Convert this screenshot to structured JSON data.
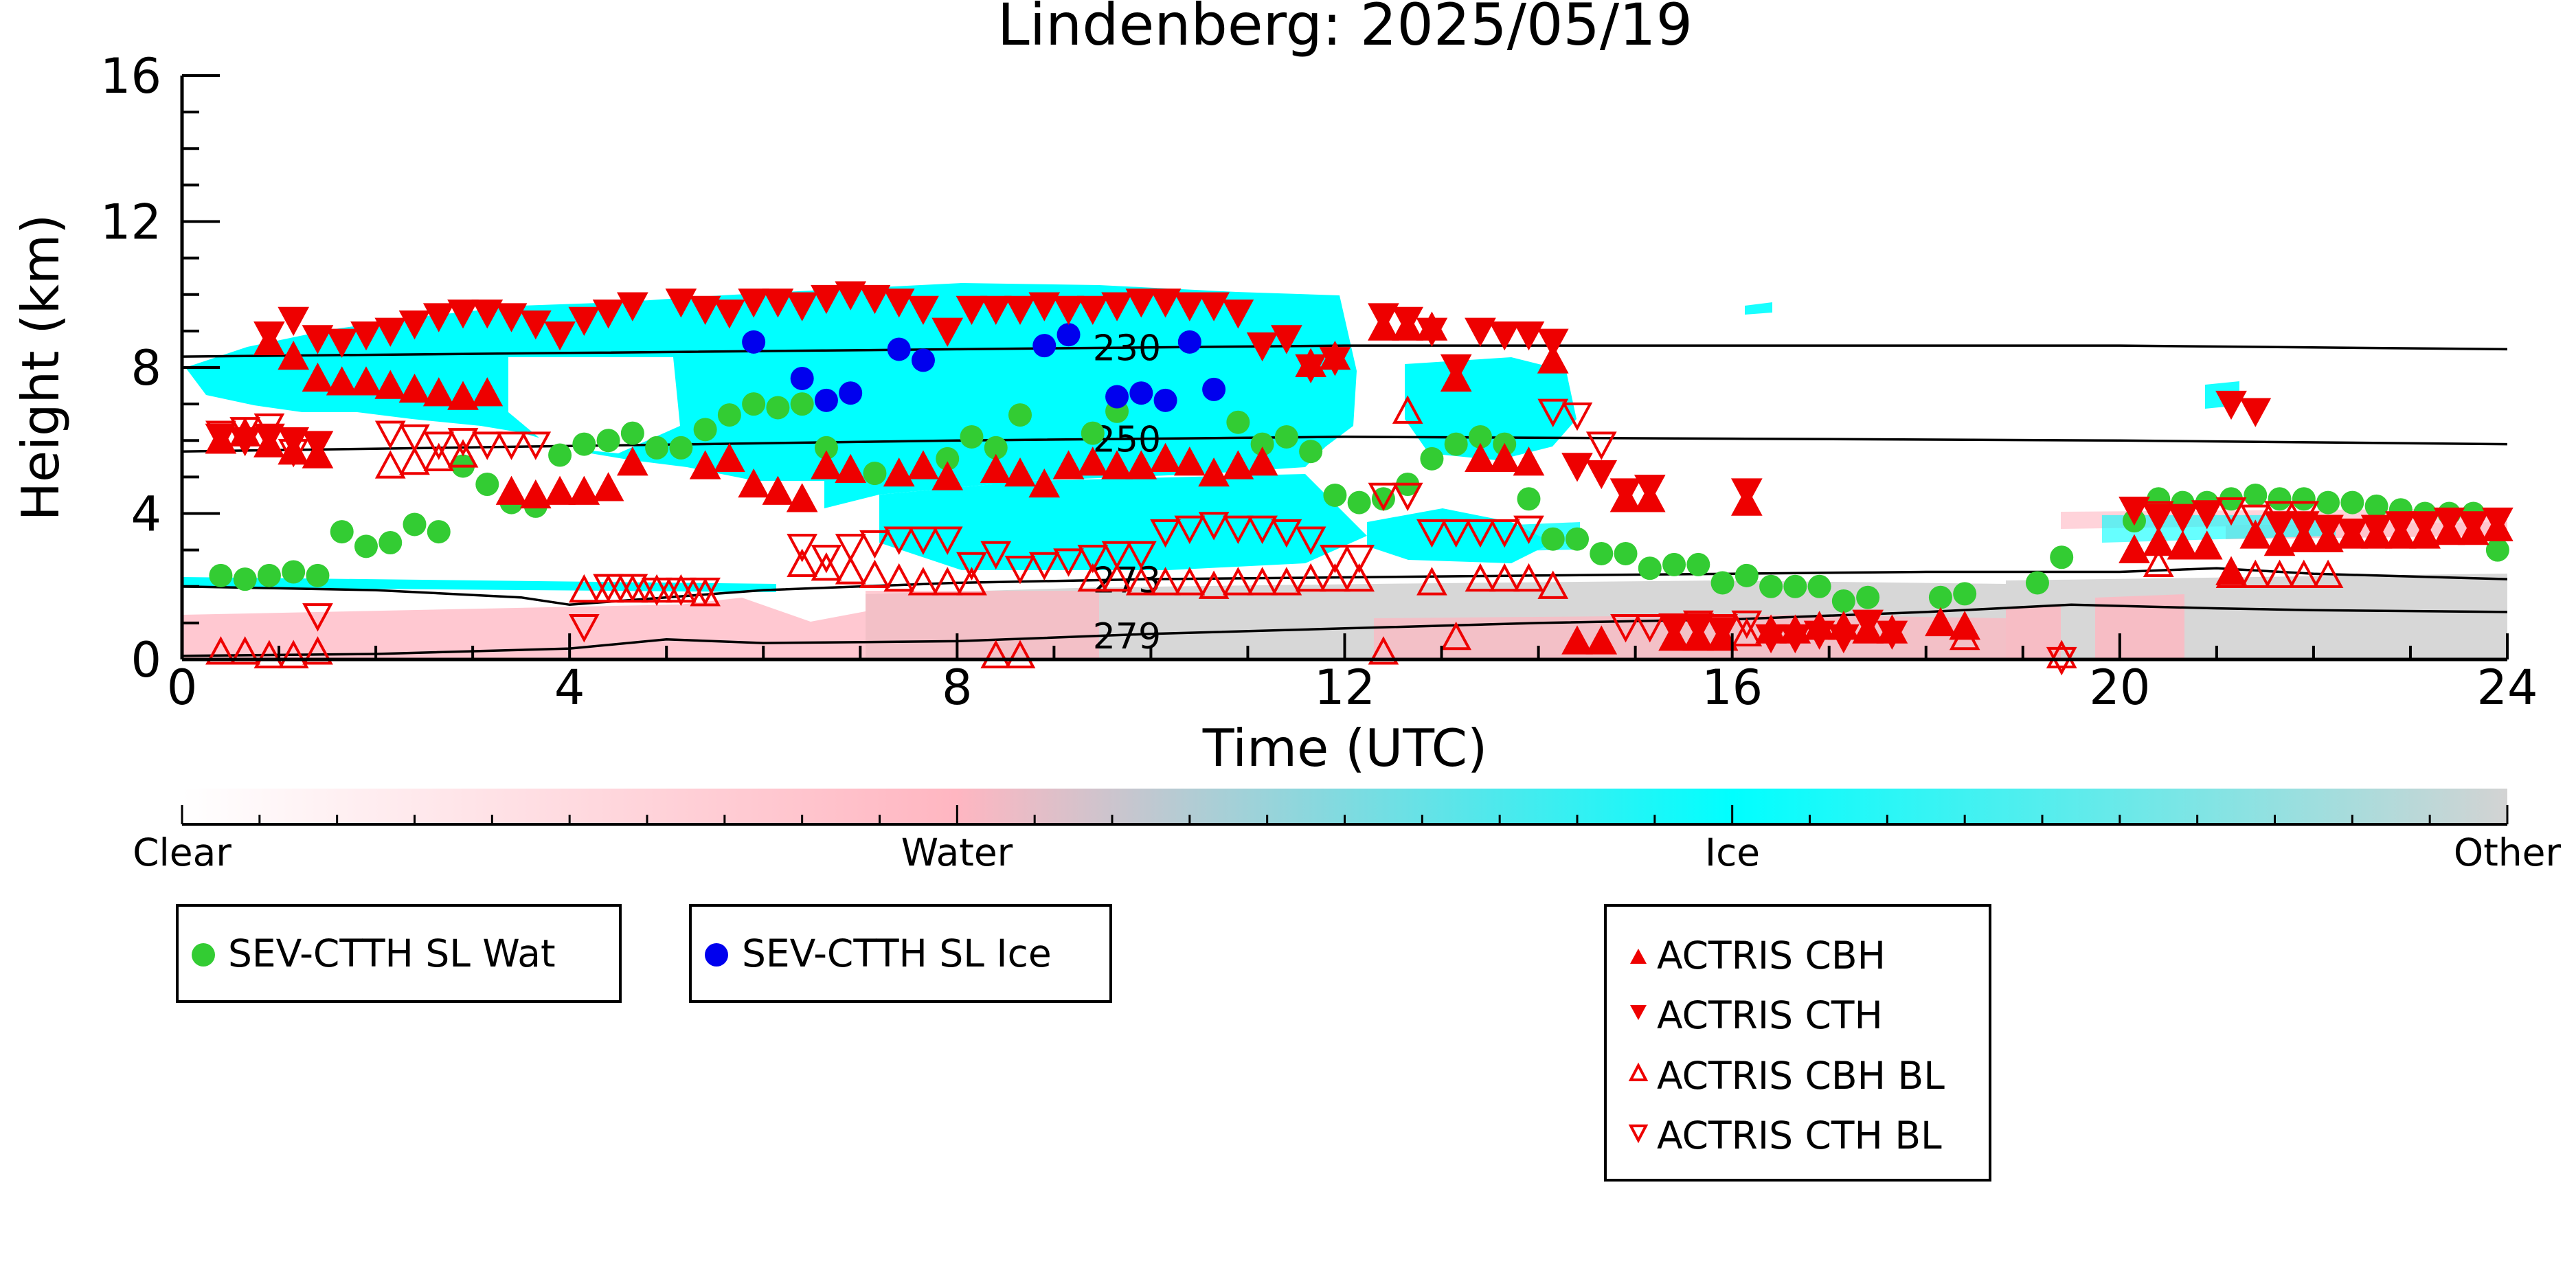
{
  "chart_data": {
    "type": "scatter",
    "title": "Lindenberg: 2025/05/19",
    "xlabel": "Time (UTC)",
    "ylabel": "Height (km)",
    "xlim": [
      0,
      24
    ],
    "ylim": [
      0,
      16
    ],
    "x_ticks": [
      "0",
      "4",
      "8",
      "12",
      "16",
      "20",
      "24"
    ],
    "y_ticks": [
      "0",
      "4",
      "8",
      "12",
      "16"
    ],
    "colorbar": {
      "labels": [
        "Clear",
        "Water",
        "Ice",
        "Other"
      ],
      "colors": [
        "#ffffff",
        "#ffb6c1",
        "#00ffff",
        "#d3d3d3"
      ]
    },
    "isotherms": [
      {
        "label": "230",
        "label_at_x": 9.4,
        "x": [
          0,
          4,
          8,
          12,
          16,
          20,
          24
        ],
        "y": [
          8.3,
          8.4,
          8.5,
          8.6,
          8.6,
          8.6,
          8.5
        ]
      },
      {
        "label": "250",
        "label_at_x": 9.4,
        "x": [
          0,
          4,
          8,
          12,
          16,
          20,
          24
        ],
        "y": [
          5.7,
          5.85,
          6.0,
          6.1,
          6.05,
          6.0,
          5.9
        ]
      },
      {
        "label": "273",
        "label_at_x": 9.4,
        "x": [
          0,
          1,
          2,
          3.5,
          4,
          6,
          8,
          10,
          12,
          14,
          16,
          18,
          20,
          21,
          22,
          24
        ],
        "y": [
          2.0,
          1.95,
          1.9,
          1.7,
          1.5,
          1.9,
          2.1,
          2.2,
          2.25,
          2.3,
          2.35,
          2.4,
          2.4,
          2.5,
          2.35,
          2.2
        ]
      },
      {
        "label": "279",
        "label_at_x": 9.4,
        "x": [
          0,
          2,
          4,
          5,
          6,
          8,
          10,
          12,
          14,
          16,
          18,
          19.5,
          21,
          22,
          24
        ],
        "y": [
          0.1,
          0.15,
          0.3,
          0.55,
          0.45,
          0.5,
          0.7,
          0.85,
          1.0,
          1.1,
          1.3,
          1.5,
          1.4,
          1.35,
          1.3
        ]
      }
    ],
    "series": [
      {
        "name": "SEV-CTTH SL Wat",
        "color": "#33cc33",
        "marker": "circle",
        "x": [
          0.4,
          0.65,
          0.9,
          1.15,
          1.4,
          1.65,
          1.9,
          2.15,
          2.4,
          2.65,
          2.9,
          3.15,
          3.4,
          3.65,
          3.9,
          4.15,
          4.4,
          4.65,
          4.9,
          5.15,
          5.4,
          5.65,
          5.9,
          6.15,
          6.4,
          6.65,
          7.15,
          7.9,
          8.15,
          8.4,
          8.65,
          9.4,
          9.65,
          10.9,
          11.15,
          11.4,
          11.65,
          11.9,
          12.15,
          12.4,
          12.65,
          12.9,
          13.15,
          13.4,
          13.65,
          13.9,
          14.15,
          14.4,
          14.65,
          14.9,
          15.15,
          15.4,
          15.65,
          15.9,
          16.15,
          16.4,
          16.65,
          16.9,
          17.15,
          17.4,
          18.15,
          18.4,
          19.15,
          19.4,
          20.15,
          20.4,
          20.65,
          20.9,
          21.15,
          21.4,
          21.65,
          21.9,
          22.15,
          22.4,
          22.65,
          22.9,
          23.15,
          23.4,
          23.65,
          23.9
        ],
        "y": [
          2.3,
          2.2,
          2.3,
          2.4,
          2.3,
          3.5,
          3.1,
          3.2,
          3.7,
          3.5,
          5.3,
          4.8,
          4.3,
          4.2,
          5.6,
          5.9,
          6.0,
          6.2,
          5.8,
          5.8,
          6.3,
          6.7,
          7.0,
          6.9,
          7.0,
          5.8,
          5.1,
          5.5,
          6.1,
          5.8,
          6.7,
          6.2,
          6.8,
          6.5,
          5.9,
          6.1,
          5.7,
          4.5,
          4.3,
          4.4,
          4.8,
          5.5,
          5.9,
          6.1,
          5.9,
          4.4,
          3.3,
          3.3,
          2.9,
          2.9,
          2.5,
          2.6,
          2.6,
          2.1,
          2.3,
          2.0,
          2.0,
          2.0,
          1.6,
          1.7,
          1.7,
          1.8,
          2.1,
          2.8,
          3.8,
          4.4,
          4.3,
          4.3,
          4.4,
          4.5,
          4.4,
          4.4,
          4.3,
          4.3,
          4.2,
          4.1,
          4.0,
          4.0,
          4.0,
          3.0
        ]
      },
      {
        "name": "SEV-CTTH SL Ice",
        "color": "#0000ee",
        "marker": "circle",
        "x": [
          5.9,
          6.4,
          6.65,
          6.9,
          7.4,
          7.65,
          8.9,
          9.15,
          9.65,
          9.9,
          10.15,
          10.4,
          10.65
        ],
        "y": [
          8.7,
          7.7,
          7.1,
          7.3,
          8.5,
          8.2,
          8.6,
          8.9,
          7.2,
          7.3,
          7.1,
          8.7,
          7.4
        ]
      },
      {
        "name": "ACTRIS CBH",
        "color": "#ee0000",
        "marker": "triangle-up",
        "x": [
          0.9,
          1.15,
          1.4,
          1.65,
          1.9,
          2.15,
          2.4,
          2.65,
          2.9,
          3.15,
          3.4,
          3.65,
          3.9,
          4.15,
          4.4,
          4.65,
          5.4,
          5.65,
          5.9,
          6.15,
          6.4,
          6.65,
          6.9,
          7.4,
          7.65,
          7.9,
          8.4,
          8.65,
          8.9,
          9.15,
          9.4,
          9.65,
          9.9,
          10.15,
          10.4,
          10.65,
          10.9,
          11.15,
          11.65,
          11.9,
          12.4,
          12.65,
          12.9,
          13.15,
          13.4,
          13.65,
          13.9,
          14.15,
          14.4,
          14.65,
          14.9,
          15.15,
          15.4,
          15.65,
          15.9,
          16.15,
          16.4,
          16.65,
          16.9,
          17.15,
          17.4,
          17.65,
          18.15,
          18.4,
          20.15,
          20.4,
          20.65,
          20.9,
          21.15,
          21.4,
          21.65,
          21.9,
          22.15,
          22.4,
          22.65,
          22.9,
          23.15,
          23.4,
          23.65,
          23.9,
          0.4,
          0.65,
          0.9,
          1.15,
          1.4
        ],
        "y": [
          8.7,
          8.3,
          7.7,
          7.6,
          7.6,
          7.5,
          7.4,
          7.3,
          7.2,
          7.3,
          4.6,
          4.5,
          4.6,
          4.6,
          4.7,
          5.4,
          5.3,
          5.5,
          4.8,
          4.6,
          4.4,
          5.3,
          5.2,
          5.1,
          5.3,
          5.0,
          5.2,
          5.1,
          4.8,
          5.3,
          5.4,
          5.3,
          5.3,
          5.5,
          5.4,
          5.1,
          5.3,
          5.4,
          8.1,
          8.3,
          9.1,
          9.1,
          9.1,
          7.7,
          5.5,
          5.5,
          5.4,
          8.2,
          0.5,
          0.5,
          4.4,
          4.4,
          0.6,
          0.6,
          0.6,
          4.3,
          0.8,
          0.8,
          0.9,
          0.9,
          0.8,
          0.8,
          1.0,
          0.9,
          3.0,
          3.2,
          3.1,
          3.1,
          2.4,
          3.4,
          3.2,
          3.3,
          3.3,
          3.4,
          3.4,
          3.4,
          3.4,
          3.5,
          3.5,
          3.6,
          6.0,
          6.2,
          5.9,
          5.7,
          5.6
        ]
      },
      {
        "name": "ACTRIS CTH",
        "color": "#ee0000",
        "marker": "triangle-down",
        "x": [
          0.9,
          1.15,
          1.4,
          1.65,
          1.9,
          2.15,
          2.4,
          2.65,
          2.9,
          3.15,
          3.4,
          3.65,
          3.9,
          4.15,
          4.4,
          4.65,
          5.15,
          5.4,
          5.65,
          5.9,
          6.15,
          6.4,
          6.65,
          6.9,
          7.15,
          7.4,
          7.65,
          7.9,
          8.15,
          8.4,
          8.65,
          8.9,
          9.15,
          9.4,
          9.65,
          9.9,
          10.15,
          10.4,
          10.65,
          10.9,
          11.15,
          11.4,
          11.65,
          11.9,
          12.4,
          12.65,
          12.9,
          13.15,
          13.4,
          13.65,
          13.9,
          14.15,
          14.4,
          14.65,
          14.9,
          15.15,
          15.4,
          15.65,
          15.9,
          16.15,
          16.4,
          16.65,
          16.9,
          17.15,
          17.4,
          17.65,
          20.15,
          20.4,
          20.65,
          20.9,
          21.15,
          21.4,
          21.65,
          21.9,
          22.15,
          22.4,
          22.65,
          22.9,
          23.15,
          23.4,
          23.65,
          23.9,
          0.4,
          0.65,
          0.9,
          1.15,
          1.4
        ],
        "y": [
          8.9,
          9.3,
          8.8,
          8.7,
          8.9,
          9.0,
          9.2,
          9.4,
          9.5,
          9.5,
          9.4,
          9.2,
          8.9,
          9.3,
          9.5,
          9.7,
          9.8,
          9.6,
          9.5,
          9.8,
          9.8,
          9.7,
          9.9,
          10.0,
          9.9,
          9.8,
          9.6,
          9.0,
          9.6,
          9.6,
          9.6,
          9.7,
          9.6,
          9.6,
          9.7,
          9.8,
          9.8,
          9.7,
          9.7,
          9.5,
          8.6,
          8.8,
          8.0,
          8.2,
          9.4,
          9.3,
          9.0,
          8.0,
          9.0,
          8.9,
          8.9,
          8.7,
          5.3,
          5.1,
          4.6,
          4.7,
          0.9,
          0.9,
          0.8,
          4.6,
          0.6,
          0.6,
          0.7,
          0.6,
          1.0,
          0.7,
          4.1,
          3.9,
          3.9,
          4.0,
          7.0,
          6.8,
          3.7,
          3.7,
          3.6,
          3.5,
          3.6,
          3.7,
          3.7,
          3.8,
          3.7,
          3.8,
          6.1,
          6.0,
          6.1,
          6.0,
          5.9
        ]
      },
      {
        "name": "ACTRIS CBH BL",
        "color": "#ee0000",
        "marker": "triangle-up-open",
        "x": [
          0.4,
          0.65,
          0.9,
          1.15,
          1.4,
          2.15,
          2.4,
          2.65,
          2.9,
          4.15,
          4.4,
          4.65,
          4.9,
          5.15,
          5.4,
          6.4,
          6.65,
          6.9,
          7.15,
          7.4,
          7.65,
          7.9,
          8.15,
          8.4,
          8.65,
          9.4,
          9.65,
          9.9,
          10.15,
          10.4,
          10.65,
          10.9,
          11.15,
          11.4,
          11.65,
          11.9,
          12.15,
          12.4,
          12.65,
          12.9,
          13.15,
          13.4,
          13.65,
          13.9,
          14.15,
          15.9,
          16.15,
          18.4,
          19.4,
          20.4,
          21.15,
          21.4,
          21.65,
          21.9,
          22.15
        ],
        "y": [
          0.2,
          0.2,
          0.1,
          0.1,
          0.2,
          5.3,
          5.4,
          5.5,
          5.6,
          1.9,
          1.9,
          1.9,
          1.9,
          1.9,
          1.8,
          2.6,
          2.5,
          2.4,
          2.3,
          2.2,
          2.1,
          2.1,
          2.1,
          0.1,
          0.1,
          2.2,
          2.2,
          2.1,
          2.1,
          2.1,
          2.0,
          2.1,
          2.1,
          2.1,
          2.2,
          2.2,
          2.2,
          0.2,
          6.8,
          2.1,
          0.6,
          2.2,
          2.2,
          2.2,
          2.0,
          0.6,
          0.7,
          0.6,
          0.1,
          2.6,
          2.3,
          2.3,
          2.3,
          2.3,
          2.3
        ]
      },
      {
        "name": "ACTRIS CTH BL",
        "color": "#ee0000",
        "marker": "triangle-down-open",
        "x": [
          0.4,
          0.65,
          0.9,
          1.15,
          1.4,
          2.15,
          2.4,
          2.65,
          2.9,
          3.15,
          3.4,
          3.65,
          4.15,
          4.4,
          4.65,
          4.9,
          5.15,
          5.4,
          6.4,
          6.65,
          6.9,
          7.15,
          7.4,
          7.65,
          7.9,
          8.15,
          8.4,
          8.65,
          8.9,
          9.15,
          9.4,
          9.65,
          9.9,
          10.15,
          10.4,
          10.65,
          10.9,
          11.15,
          11.4,
          11.65,
          11.9,
          12.15,
          12.4,
          12.65,
          12.9,
          13.15,
          13.4,
          13.65,
          13.9,
          14.15,
          14.4,
          14.65,
          14.9,
          15.15,
          15.4,
          15.65,
          15.9,
          16.15,
          19.4,
          20.4,
          21.15,
          21.4,
          21.65,
          21.9
        ],
        "y": [
          6.2,
          6.3,
          6.4,
          5.7,
          1.2,
          6.2,
          6.1,
          5.9,
          6.0,
          5.9,
          5.9,
          5.9,
          0.9,
          2.0,
          2.0,
          1.9,
          1.9,
          1.9,
          3.1,
          2.8,
          3.1,
          3.2,
          3.3,
          3.3,
          3.3,
          2.6,
          2.9,
          2.5,
          2.6,
          2.7,
          2.8,
          2.9,
          2.9,
          3.5,
          3.6,
          3.7,
          3.6,
          3.6,
          3.5,
          3.3,
          2.8,
          2.8,
          4.5,
          4.5,
          3.5,
          3.5,
          3.5,
          3.5,
          3.6,
          6.8,
          6.7,
          5.9,
          0.9,
          0.9,
          0.9,
          1.0,
          0.9,
          1.0,
          0.0,
          4.0,
          4.1,
          3.9,
          4.0,
          4.0
        ]
      }
    ]
  }
}
